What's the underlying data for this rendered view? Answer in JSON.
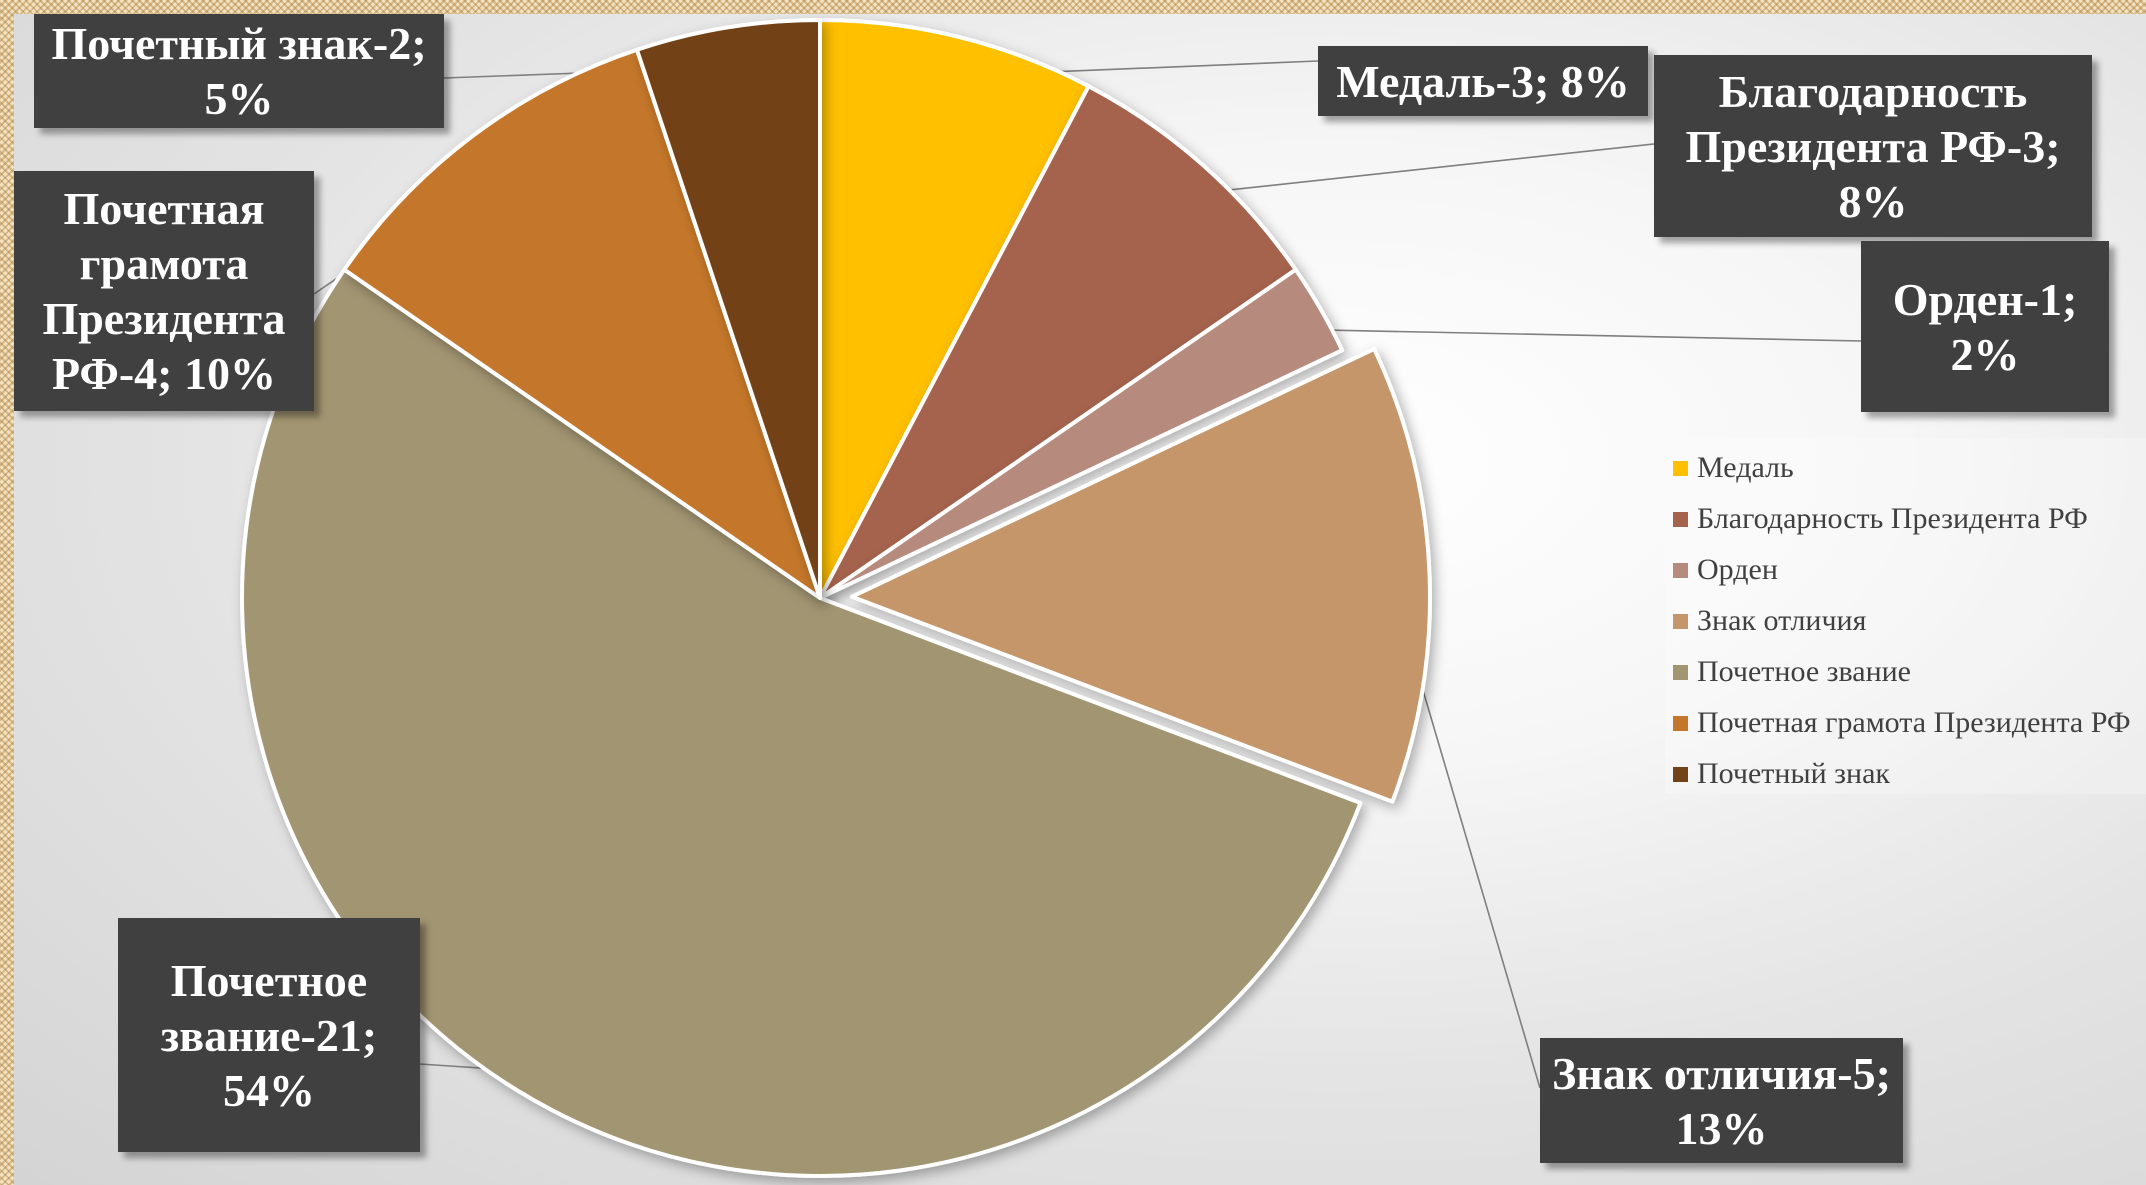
{
  "chart_data": {
    "type": "pie",
    "title": "",
    "slices": [
      {
        "name": "Медаль",
        "value": 3,
        "percent": 8,
        "color": "#FFC000",
        "label_lines": [
          "Медаль-3; 8%"
        ],
        "exploded": false
      },
      {
        "name": "Благодарность Президента РФ",
        "value": 3,
        "percent": 8,
        "color": "#A5634E",
        "label_lines": [
          "Благодарность",
          "Президента РФ-3;",
          "8%"
        ],
        "exploded": false
      },
      {
        "name": "Орден",
        "value": 1,
        "percent": 2,
        "color": "#B78A7E",
        "label_lines": [
          "Орден-1;",
          "2%"
        ],
        "exploded": false
      },
      {
        "name": "Знак отличия",
        "value": 5,
        "percent": 13,
        "color": "#C4966B",
        "label_lines": [
          "Знак отличия-5;",
          "13%"
        ],
        "exploded": true
      },
      {
        "name": "Почетное звание",
        "value": 21,
        "percent": 54,
        "color": "#A29572",
        "label_lines": [
          "Почетное",
          "звание-21;",
          "54%"
        ],
        "exploded": false
      },
      {
        "name": "Почетная грамота Президента РФ",
        "value": 4,
        "percent": 10,
        "color": "#C4772A",
        "label_lines": [
          "Почетная",
          "грамота",
          "Президента",
          "РФ-4; 10%"
        ],
        "exploded": false
      },
      {
        "name": "Почетный знак",
        "value": 2,
        "percent": 5,
        "color": "#724219",
        "label_lines": [
          "Почетный знак-2;",
          "5%"
        ],
        "exploded": false
      }
    ],
    "legend": {
      "position": "right",
      "entries": [
        "Медаль",
        "Благодарность Президента РФ",
        "Орден",
        "Знак отличия",
        "Почетное звание",
        "Почетная грамота Президента РФ",
        "Почетный знак"
      ]
    },
    "data_label_style": {
      "background": "#404040",
      "text_color": "#FFFFFF"
    }
  }
}
